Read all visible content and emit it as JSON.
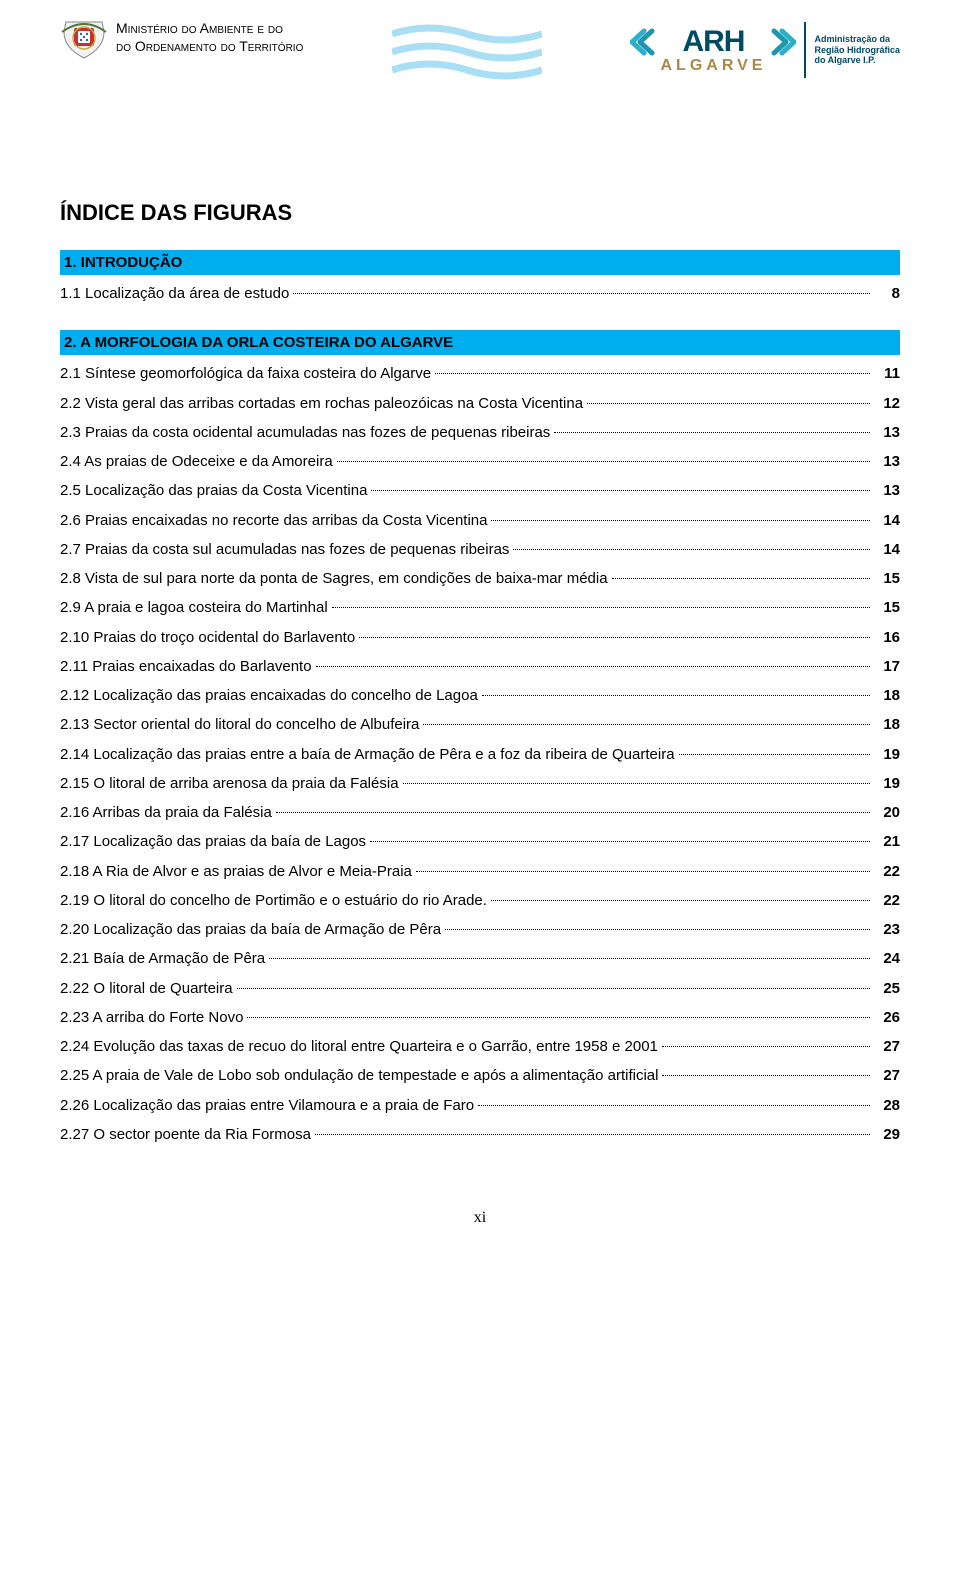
{
  "header": {
    "ministry_line1": "Ministério do Ambiente e do",
    "ministry_line2": "do Ordenamento do Território",
    "arh": "ARH",
    "algarve": "ALGARVE",
    "admin_line1": "Administração da",
    "admin_line2": "Região Hidrográfica",
    "admin_line3": "do Algarve I.P.",
    "colors": {
      "accent_blue": "#004a64",
      "accent_gold": "#a7894a",
      "section_bg": "#00aeef",
      "wave_blue": "#00aeef"
    }
  },
  "title": "ÍNDICE DAS FIGURAS",
  "sections": [
    {
      "heading": "1. INTRODUÇÃO",
      "items": [
        {
          "label": "1.1 Localização da área de estudo",
          "page": "8"
        }
      ]
    },
    {
      "heading": "2. A MORFOLOGIA DA ORLA COSTEIRA DO ALGARVE",
      "items": [
        {
          "label": "2.1 Síntese geomorfológica da faixa costeira do Algarve",
          "page": "11"
        },
        {
          "label": "2.2 Vista geral das arribas cortadas em rochas paleozóicas na Costa Vicentina",
          "page": "12"
        },
        {
          "label": "2.3 Praias da costa ocidental acumuladas nas fozes de pequenas ribeiras",
          "page": "13"
        },
        {
          "label": "2.4 As praias de Odeceixe e da Amoreira",
          "page": "13"
        },
        {
          "label": "2.5 Localização das praias da Costa Vicentina",
          "page": "13"
        },
        {
          "label": "2.6 Praias encaixadas no recorte das arribas da Costa Vicentina",
          "page": "14"
        },
        {
          "label": "2.7 Praias da costa sul acumuladas nas fozes de pequenas ribeiras",
          "page": "14"
        },
        {
          "label": "2.8 Vista de sul para norte da ponta de Sagres, em condições de baixa-mar média",
          "page": "15"
        },
        {
          "label": "2.9 A praia e lagoa costeira do Martinhal",
          "page": "15"
        },
        {
          "label": "2.10 Praias do troço ocidental do Barlavento",
          "page": "16"
        },
        {
          "label": "2.11 Praias encaixadas do Barlavento",
          "page": "17"
        },
        {
          "label": "2.12 Localização das praias encaixadas do concelho de Lagoa",
          "page": "18"
        },
        {
          "label": "2.13 Sector oriental do litoral do concelho de Albufeira",
          "page": "18"
        },
        {
          "label": "2.14 Localização das praias entre a baía de Armação de Pêra e a foz da ribeira de Quarteira",
          "page": "19"
        },
        {
          "label": "2.15 O litoral de arriba arenosa da praia da Falésia",
          "page": "19"
        },
        {
          "label": "2.16 Arribas da praia da Falésia",
          "page": "20"
        },
        {
          "label": "2.17 Localização das praias da baía de Lagos",
          "page": "21"
        },
        {
          "label": "2.18 A Ria de Alvor e as praias de Alvor e Meia-Praia",
          "page": "22"
        },
        {
          "label": "2.19 O litoral do concelho de Portimão e o estuário do rio Arade.",
          "page": "22"
        },
        {
          "label": "2.20 Localização das praias da baía de Armação de Pêra",
          "page": "23"
        },
        {
          "label": "2.21 Baía de Armação de Pêra",
          "page": "24"
        },
        {
          "label": "2.22 O litoral de Quarteira",
          "page": "25"
        },
        {
          "label": "2.23 A arriba do Forte Novo",
          "page": "26"
        },
        {
          "label": "2.24 Evolução das taxas de recuo do litoral entre Quarteira e o Garrão, entre 1958 e 2001",
          "page": "27"
        },
        {
          "label": "2.25 A praia de Vale de Lobo sob ondulação de tempestade e após a alimentação artificial",
          "page": "27"
        },
        {
          "label": "2.26 Localização das praias entre Vilamoura e a praia de Faro",
          "page": "28"
        },
        {
          "label": "2.27 O sector poente da Ria Formosa",
          "page": "29"
        }
      ]
    }
  ],
  "page_number": "xi"
}
